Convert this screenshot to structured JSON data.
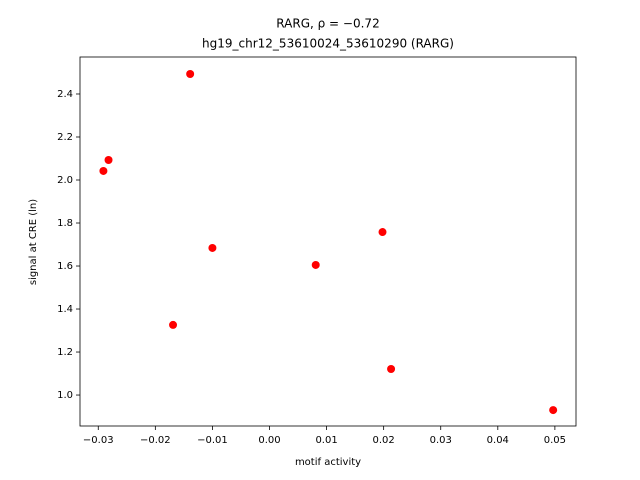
{
  "chart_data": {
    "type": "scatter",
    "title": "RARG, ρ = −0.72",
    "subtitle": "hg19_chr12_53610024_53610290 (RARG)",
    "x_label": "motif activity",
    "y_label": "signal at CRE (ln)",
    "color": "#ff0000",
    "x": [
      -0.0291,
      -0.0282,
      -0.0139,
      -0.0169,
      -0.01,
      0.0081,
      0.0198,
      0.0213,
      0.0497
    ],
    "values": [
      2.042,
      2.093,
      2.493,
      1.326,
      1.684,
      1.605,
      1.758,
      1.121,
      0.93
    ],
    "xlim": [
      -0.0332,
      0.0537
    ],
    "ylim": [
      0.856,
      2.572
    ],
    "xticks": [
      {
        "value": -0.03,
        "label": "−0.03"
      },
      {
        "value": -0.02,
        "label": "−0.02"
      },
      {
        "value": -0.01,
        "label": "−0.01"
      },
      {
        "value": 0,
        "label": "0.00"
      },
      0.01,
      0.02,
      0.03,
      0.04,
      0.05
    ],
    "yticks": [
      {
        "value": 1,
        "label": "1.0"
      },
      1.2,
      1.4,
      1.6,
      1.8,
      {
        "value": 2,
        "label": "2.0"
      },
      2.2,
      2.4
    ],
    "grid": false
  }
}
